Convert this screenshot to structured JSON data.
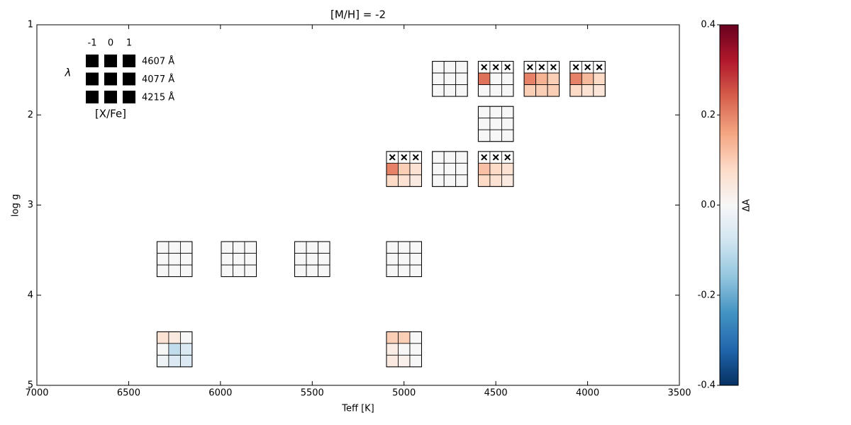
{
  "chart_data": {
    "type": "heatmap-grid",
    "title": "[M/H] = -2",
    "x_label": "Teff [K]",
    "y_label": "log g",
    "xlim": [
      7000,
      3500
    ],
    "xticks": [
      7000,
      6500,
      6000,
      5500,
      5000,
      4500,
      4000,
      3500
    ],
    "ylim": [
      5,
      1
    ],
    "yticks": [
      1,
      2,
      3,
      4,
      5
    ],
    "colormap": "RdBu_r",
    "clim": [
      -0.4,
      0.4
    ],
    "cticks": [
      -0.4,
      -0.2,
      {
        "value": 0,
        "label": "0.0"
      },
      0.2,
      0.4
    ],
    "colorbar_label": "ΔA",
    "key": {
      "symbol": "λ",
      "columns": [
        "-1",
        "0",
        "1"
      ],
      "rows": [
        "4607 Å",
        "4077 Å",
        "4215 Å"
      ],
      "label": "[X/Fe]"
    },
    "grids": [
      {
        "x": 4750,
        "y": 1.6,
        "values": [
          [
            0,
            0,
            0
          ],
          [
            0,
            0,
            0
          ],
          [
            0,
            0,
            0
          ]
        ]
      },
      {
        "x": 4500,
        "y": 1.6,
        "values": [
          [
            null,
            null,
            null
          ],
          [
            0.22,
            0,
            0
          ],
          [
            0,
            0,
            0
          ]
        ]
      },
      {
        "x": 4250,
        "y": 1.6,
        "values": [
          [
            null,
            null,
            null
          ],
          [
            0.2,
            0.14,
            0.1
          ],
          [
            0.1,
            0.1,
            0.1
          ]
        ]
      },
      {
        "x": 4000,
        "y": 1.6,
        "values": [
          [
            null,
            null,
            null
          ],
          [
            0.2,
            0.13,
            0.08
          ],
          [
            0.08,
            0.06,
            0.05
          ]
        ]
      },
      {
        "x": 4500,
        "y": 2.1,
        "values": [
          [
            0,
            0,
            0
          ],
          [
            0,
            0,
            0
          ],
          [
            0,
            0,
            0
          ]
        ]
      },
      {
        "x": 5000,
        "y": 2.6,
        "values": [
          [
            null,
            null,
            null
          ],
          [
            0.2,
            0.1,
            0.06
          ],
          [
            0.08,
            0.06,
            0.04
          ]
        ]
      },
      {
        "x": 4750,
        "y": 2.6,
        "values": [
          [
            0,
            0,
            0
          ],
          [
            0,
            0,
            0
          ],
          [
            0,
            0,
            0
          ]
        ]
      },
      {
        "x": 4500,
        "y": 2.6,
        "values": [
          [
            null,
            null,
            null
          ],
          [
            0.12,
            0.08,
            0.06
          ],
          [
            0.08,
            0.06,
            0.04
          ]
        ]
      },
      {
        "x": 6250,
        "y": 3.6,
        "values": [
          [
            0,
            0,
            0
          ],
          [
            0,
            0,
            0
          ],
          [
            0,
            0,
            0
          ]
        ]
      },
      {
        "x": 5900,
        "y": 3.6,
        "values": [
          [
            0,
            0,
            0
          ],
          [
            0,
            0,
            0
          ],
          [
            0,
            0,
            0
          ]
        ]
      },
      {
        "x": 5500,
        "y": 3.6,
        "values": [
          [
            0,
            0,
            0
          ],
          [
            0,
            0,
            0
          ],
          [
            0,
            0,
            0
          ]
        ]
      },
      {
        "x": 5000,
        "y": 3.6,
        "values": [
          [
            0,
            0,
            0
          ],
          [
            0,
            0,
            0
          ],
          [
            0,
            0,
            0
          ]
        ]
      },
      {
        "x": 6250,
        "y": 4.6,
        "values": [
          [
            0.06,
            0.04,
            0
          ],
          [
            0,
            -0.1,
            -0.06
          ],
          [
            -0.02,
            -0.06,
            -0.06
          ]
        ]
      },
      {
        "x": 5000,
        "y": 4.6,
        "values": [
          [
            0.1,
            0.1,
            0
          ],
          [
            0.03,
            0,
            0
          ],
          [
            0.04,
            0.02,
            0
          ]
        ]
      }
    ]
  }
}
